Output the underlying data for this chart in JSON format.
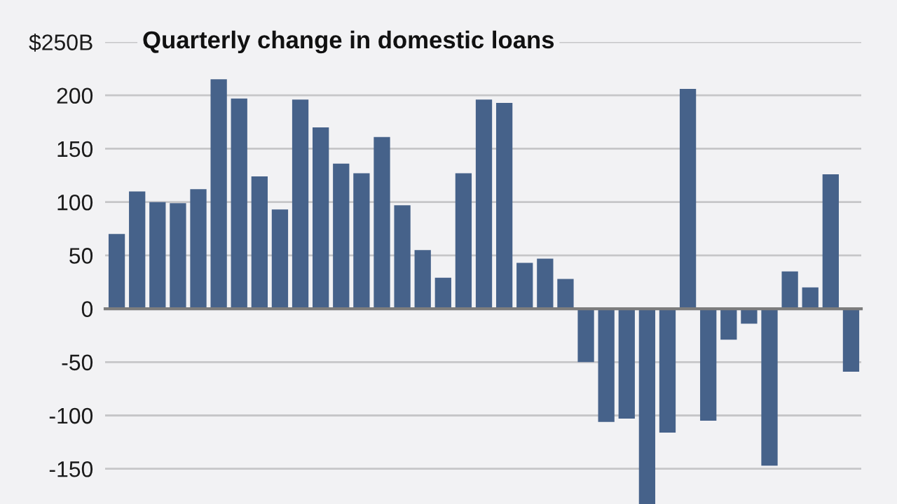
{
  "chart_data": {
    "type": "bar",
    "title": "Quarterly change in domestic loans",
    "categories": [
      null,
      null,
      null,
      null,
      null,
      null,
      null,
      null,
      null,
      null,
      null,
      null,
      null,
      null,
      null,
      null,
      null,
      null,
      null,
      null,
      null,
      null,
      null,
      null,
      null,
      null,
      null,
      null,
      null,
      null,
      null,
      null,
      null,
      null,
      null,
      null,
      null
    ],
    "values": [
      70,
      110,
      100,
      99,
      112,
      215,
      197,
      124,
      93,
      196,
      170,
      136,
      127,
      161,
      97,
      55,
      29,
      127,
      196,
      193,
      43,
      47,
      28,
      -50,
      -106,
      -103,
      -183,
      -116,
      206,
      -105,
      -29,
      -14,
      -147,
      35,
      20,
      126,
      -59
    ],
    "color": "#46628a",
    "ylim": [
      -183,
      250
    ],
    "yticks": [
      {
        "value": 250,
        "label": "$250B"
      },
      200,
      150,
      100,
      50,
      0,
      -50,
      -100,
      -150
    ],
    "grid": "y",
    "tick_labels": "y"
  }
}
